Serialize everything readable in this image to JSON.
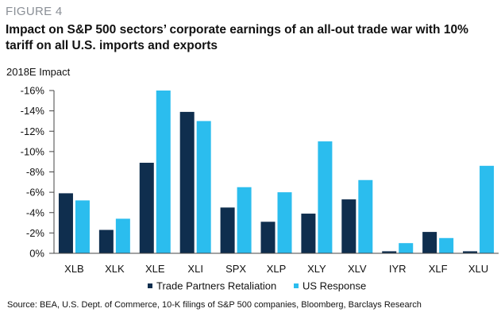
{
  "figure_label": "FIGURE 4",
  "chart_data": {
    "type": "bar",
    "title": "Impact on S&P 500 sectors’ corporate earnings of an all-out trade war with 10% tariff on all U.S. imports and exports",
    "ylabel": "2018E Impact",
    "xlabel": "",
    "categories": [
      "XLB",
      "XLK",
      "XLE",
      "XLI",
      "SPX",
      "XLP",
      "XLY",
      "XLV",
      "IYR",
      "XLF",
      "XLU"
    ],
    "series": [
      {
        "name": "Trade Partners Retaliation",
        "color": "#0f2e4e",
        "values": [
          -5.9,
          -2.3,
          -8.9,
          -13.9,
          -4.5,
          -3.1,
          -3.9,
          -5.3,
          -0.2,
          -2.1,
          -0.2
        ]
      },
      {
        "name": "US Response",
        "color": "#2bbdee",
        "values": [
          -5.2,
          -3.4,
          -16.0,
          -13.0,
          -6.5,
          -6.0,
          -11.0,
          -7.2,
          -1.0,
          -1.5,
          -8.6
        ]
      }
    ],
    "ylim": [
      0,
      -16
    ],
    "yticks": [
      0,
      -2,
      -4,
      -6,
      -8,
      -10,
      -12,
      -14,
      -16
    ],
    "ytick_labels": [
      "0%",
      "-2%",
      "-4%",
      "-6%",
      "-8%",
      "-10%",
      "-12%",
      "-14%",
      "-16%"
    ],
    "grid": false,
    "legend": "bottom-center"
  },
  "source": "Source: BEA, U.S. Dept. of Commerce, 10-K filings of S&P 500 companies, Bloomberg, Barclays Research"
}
